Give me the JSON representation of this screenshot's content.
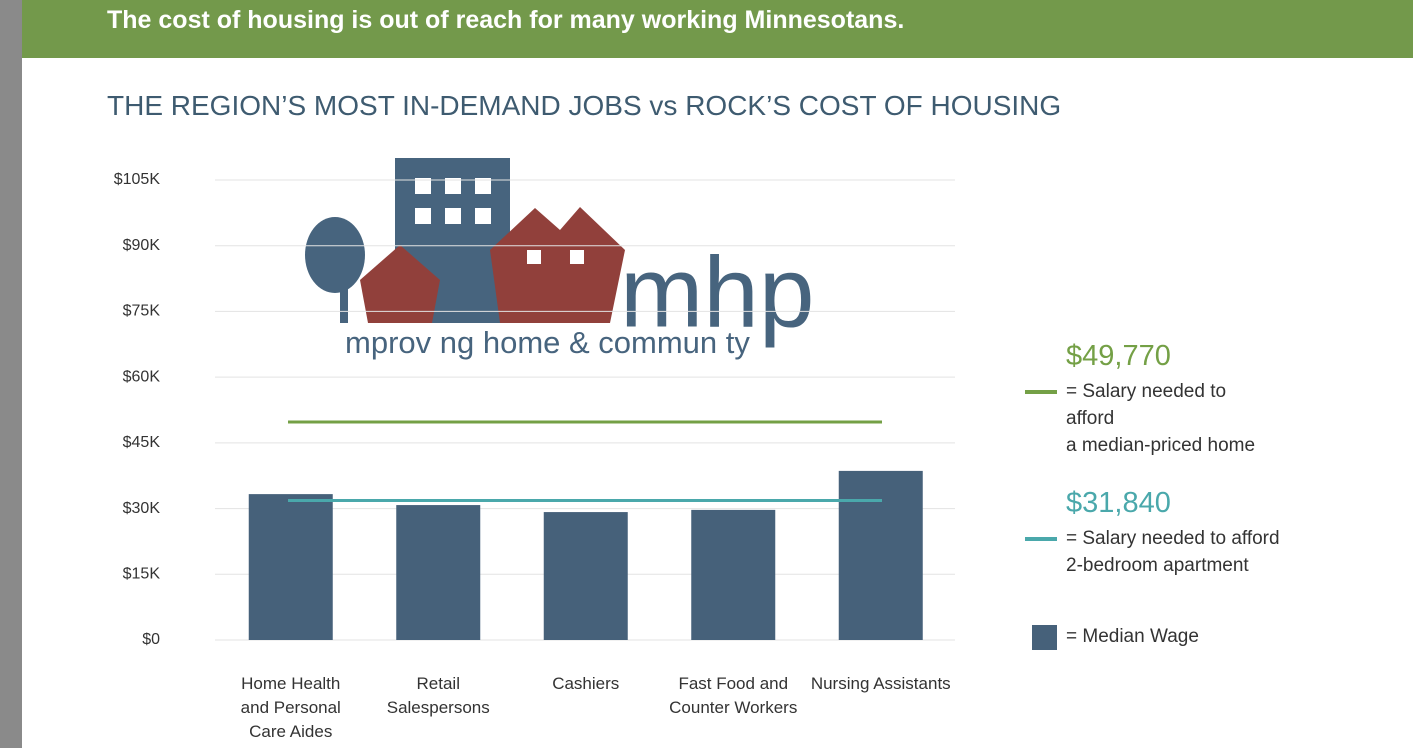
{
  "header": {
    "title": "The cost of housing is out of reach for many working Minnesotans."
  },
  "logo": {
    "name": "mhp",
    "tagline": "mprov ng home & commun ty"
  },
  "chart_data": {
    "type": "bar",
    "title": "THE REGION’S MOST IN-DEMAND JOBS vs ROCK’S COST OF HOUSING",
    "categories": [
      "Home Health\nand Personal\nCare Aides",
      "Retail\nSalespersons",
      "Cashiers",
      "Fast Food and\nCounter Workers",
      "Nursing Assistants"
    ],
    "series": [
      {
        "name": "= Median Wage",
        "color": "#46617a",
        "values": [
          33300,
          30800,
          29200,
          29700,
          38600
        ]
      }
    ],
    "reference_lines": [
      {
        "value": 49770,
        "value_label": "$49,770",
        "label": "= Salary needed to\nafford\na median-priced home",
        "color": "#74a046"
      },
      {
        "value": 31840,
        "value_label": "$31,840",
        "label": "= Salary needed to afford\n2-bedroom apartment",
        "color": "#4aa8ab"
      }
    ],
    "ylim": [
      0,
      105000
    ],
    "yticks": [
      {
        "value": 0,
        "label": "$0"
      },
      {
        "value": 15000,
        "label": "$15K"
      },
      {
        "value": 30000,
        "label": "$30K"
      },
      {
        "value": 45000,
        "label": "$45K"
      },
      {
        "value": 60000,
        "label": "$60K"
      },
      {
        "value": 75000,
        "label": "$75K"
      },
      {
        "value": 90000,
        "label": "$90K"
      },
      {
        "value": 105000,
        "label": "$105K"
      }
    ],
    "grid": true
  }
}
